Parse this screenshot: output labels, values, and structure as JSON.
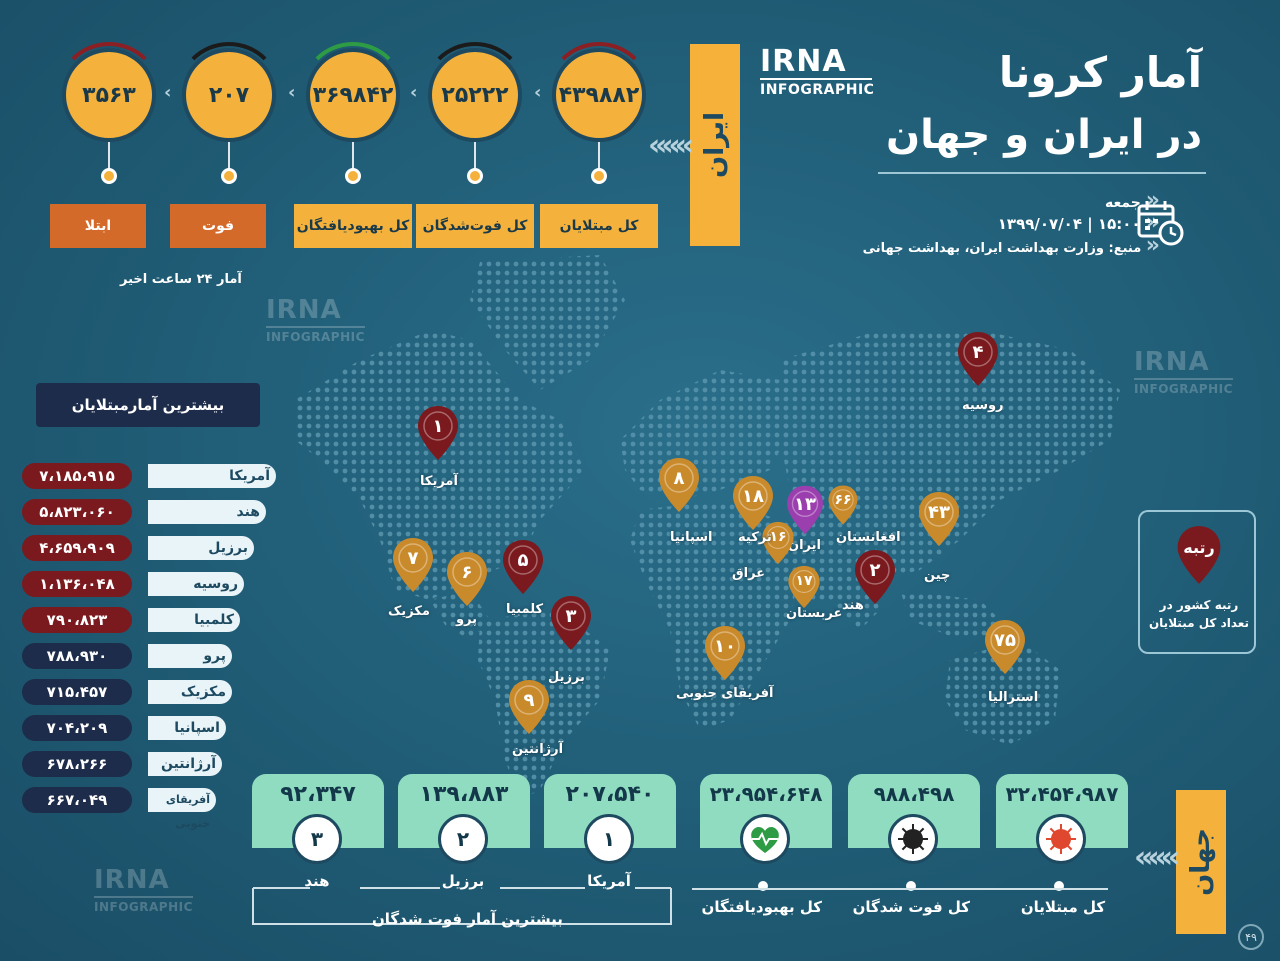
{
  "header": {
    "title_line1": "آمار کرونا",
    "title_line2": "در ایران و جهان",
    "day": "جمعه",
    "datetime": "۱۵:۰۰ | ۱۳۹۹/۰۷/۰۴",
    "source": "منبع: وزارت بهداشت ایران، بهداشت جهانی",
    "logo_word": "IRNA",
    "logo_sub": "INFOGRAPHIC"
  },
  "iran": {
    "banner": "ایران",
    "stats": [
      {
        "value": "۴۳۹۸۸۲",
        "label": "کل مبتلایان"
      },
      {
        "value": "۲۵۲۲۲",
        "label": "کل فوت‌شدگان"
      },
      {
        "value": "۳۶۹۸۴۲",
        "label": "کل بهبودیافتگان"
      },
      {
        "value": "۲۰۷",
        "label": "فوت"
      },
      {
        "value": "۳۵۶۳",
        "label": "ابتلا"
      }
    ],
    "note_24h": "آمار ۲۴ ساعت اخیر"
  },
  "top_cases": {
    "title": "بیشترین آمارمبتلایان",
    "rows": [
      {
        "country": "آمریکا",
        "value": "۷،۱۸۵،۹۱۵"
      },
      {
        "country": "هند",
        "value": "۵،۸۲۳،۰۶۰"
      },
      {
        "country": "برزیل",
        "value": "۴،۶۵۹،۹۰۹"
      },
      {
        "country": "روسیه",
        "value": "۱،۱۳۶،۰۴۸"
      },
      {
        "country": "کلمبیا",
        "value": "۷۹۰،۸۲۳"
      },
      {
        "country": "پرو",
        "value": "۷۸۸،۹۳۰"
      },
      {
        "country": "مکزیک",
        "value": "۷۱۵،۴۵۷"
      },
      {
        "country": "اسپانیا",
        "value": "۷۰۴،۲۰۹"
      },
      {
        "country": "آرژانتین",
        "value": "۶۷۸،۲۶۶"
      },
      {
        "country": "آفریقای جنوبی",
        "value": "۶۶۷،۰۴۹"
      }
    ]
  },
  "map_pins": [
    {
      "rank": "۱",
      "country": "آمریکا"
    },
    {
      "rank": "۲",
      "country": "هند"
    },
    {
      "rank": "۳",
      "country": "برزیل"
    },
    {
      "rank": "۴",
      "country": "روسیه"
    },
    {
      "rank": "۵",
      "country": "کلمبیا"
    },
    {
      "rank": "۶",
      "country": "پرو"
    },
    {
      "rank": "۷",
      "country": "مکزیک"
    },
    {
      "rank": "۸",
      "country": "اسپانیا"
    },
    {
      "rank": "۹",
      "country": "آرژانتین"
    },
    {
      "rank": "۱۰",
      "country": "آفریقای جنوبی"
    },
    {
      "rank": "۱۳",
      "country": "ایران"
    },
    {
      "rank": "۱۶",
      "country": "عراق"
    },
    {
      "rank": "۱۷",
      "country": "عربستان"
    },
    {
      "rank": "۱۸",
      "country": "ترکیه"
    },
    {
      "rank": "۴۳",
      "country": "چین"
    },
    {
      "rank": "۶۶",
      "country": "افغانستان"
    },
    {
      "rank": "۷۵",
      "country": "استرالیا"
    }
  ],
  "rank_legend": {
    "title": "رتبه",
    "desc": "رتبه کشور در تعداد کل مبتلایان"
  },
  "world": {
    "banner": "جهان",
    "totals": [
      {
        "value": "۳۲،۴۵۴،۹۸۷",
        "label": "کل مبتلایان",
        "icon": "virus-icon"
      },
      {
        "value": "۹۸۸،۴۹۸",
        "label": "کل فوت شدگان",
        "icon": "virus-dark-icon"
      },
      {
        "value": "۲۳،۹۵۴،۶۴۸",
        "label": "کل بهبودیافتگان",
        "icon": "heartbeat-icon"
      }
    ],
    "top_deaths_title": "بیشترین آمار فوت شدگان",
    "top_deaths": [
      {
        "rank": "۱",
        "value": "۲۰۷،۵۴۰",
        "country": "آمریکا"
      },
      {
        "rank": "۲",
        "value": "۱۳۹،۸۸۳",
        "country": "برزیل"
      },
      {
        "rank": "۳",
        "value": "۹۲،۳۴۷",
        "country": "هند"
      }
    ]
  },
  "page_number": "۴۹",
  "colors": {
    "background": "#22607a",
    "accent_yellow": "#f4b13c",
    "accent_orange": "#d46a2a",
    "dark_red": "#7a1a1e",
    "navy": "#1d2c4a",
    "mint": "#8fdcc1",
    "pin_gold": "#c98a2c"
  }
}
